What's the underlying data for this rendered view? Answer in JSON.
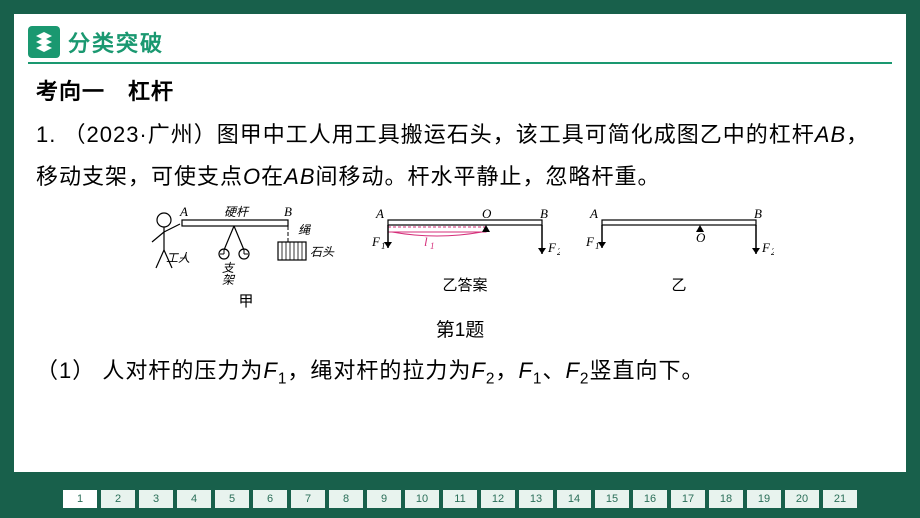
{
  "section": {
    "title": "分类突破"
  },
  "subtitle": "考向一　杠杆",
  "problem": {
    "num": "1",
    "src": "（2023·广州）",
    "text_a": "图甲中工人用工具搬运石头，该工具可简化成图乙中的杠杆",
    "ab": "AB",
    "text_b": "，移动支架，可使支点",
    "o": "O",
    "text_c": "在",
    "ab2": "AB",
    "text_d": "间移动。杆水平静止，忽略杆重。"
  },
  "figures": {
    "jia": {
      "worker": "工人",
      "rod": "硬杆",
      "frame": "支架",
      "rope": "绳",
      "stone": "石头",
      "label": "甲",
      "a": "A",
      "b": "B"
    },
    "yi_ans": {
      "a": "A",
      "b": "B",
      "o": "O",
      "f1": "F",
      "f2": "F",
      "l1": "l",
      "label": "乙答案"
    },
    "yi": {
      "a": "A",
      "b": "B",
      "o": "O",
      "f1": "F",
      "f2": "F",
      "label": "乙"
    },
    "colors": {
      "normal": "#000",
      "accent": "#d52f7a"
    }
  },
  "prob_caption": "第1题",
  "q1": {
    "num": "（1）",
    "t1": " 人对杆的压力为",
    "f1": "F",
    "s1": "1",
    "t2": "，绳对杆的拉力为",
    "f2": "F",
    "s2": "2",
    "t3": "，",
    "f1b": "F",
    "s1b": "1",
    "t4": "、",
    "f2b": "F",
    "s2b": "2",
    "t5": "竖直向下。"
  },
  "pager": {
    "count": 21,
    "active": 1
  }
}
